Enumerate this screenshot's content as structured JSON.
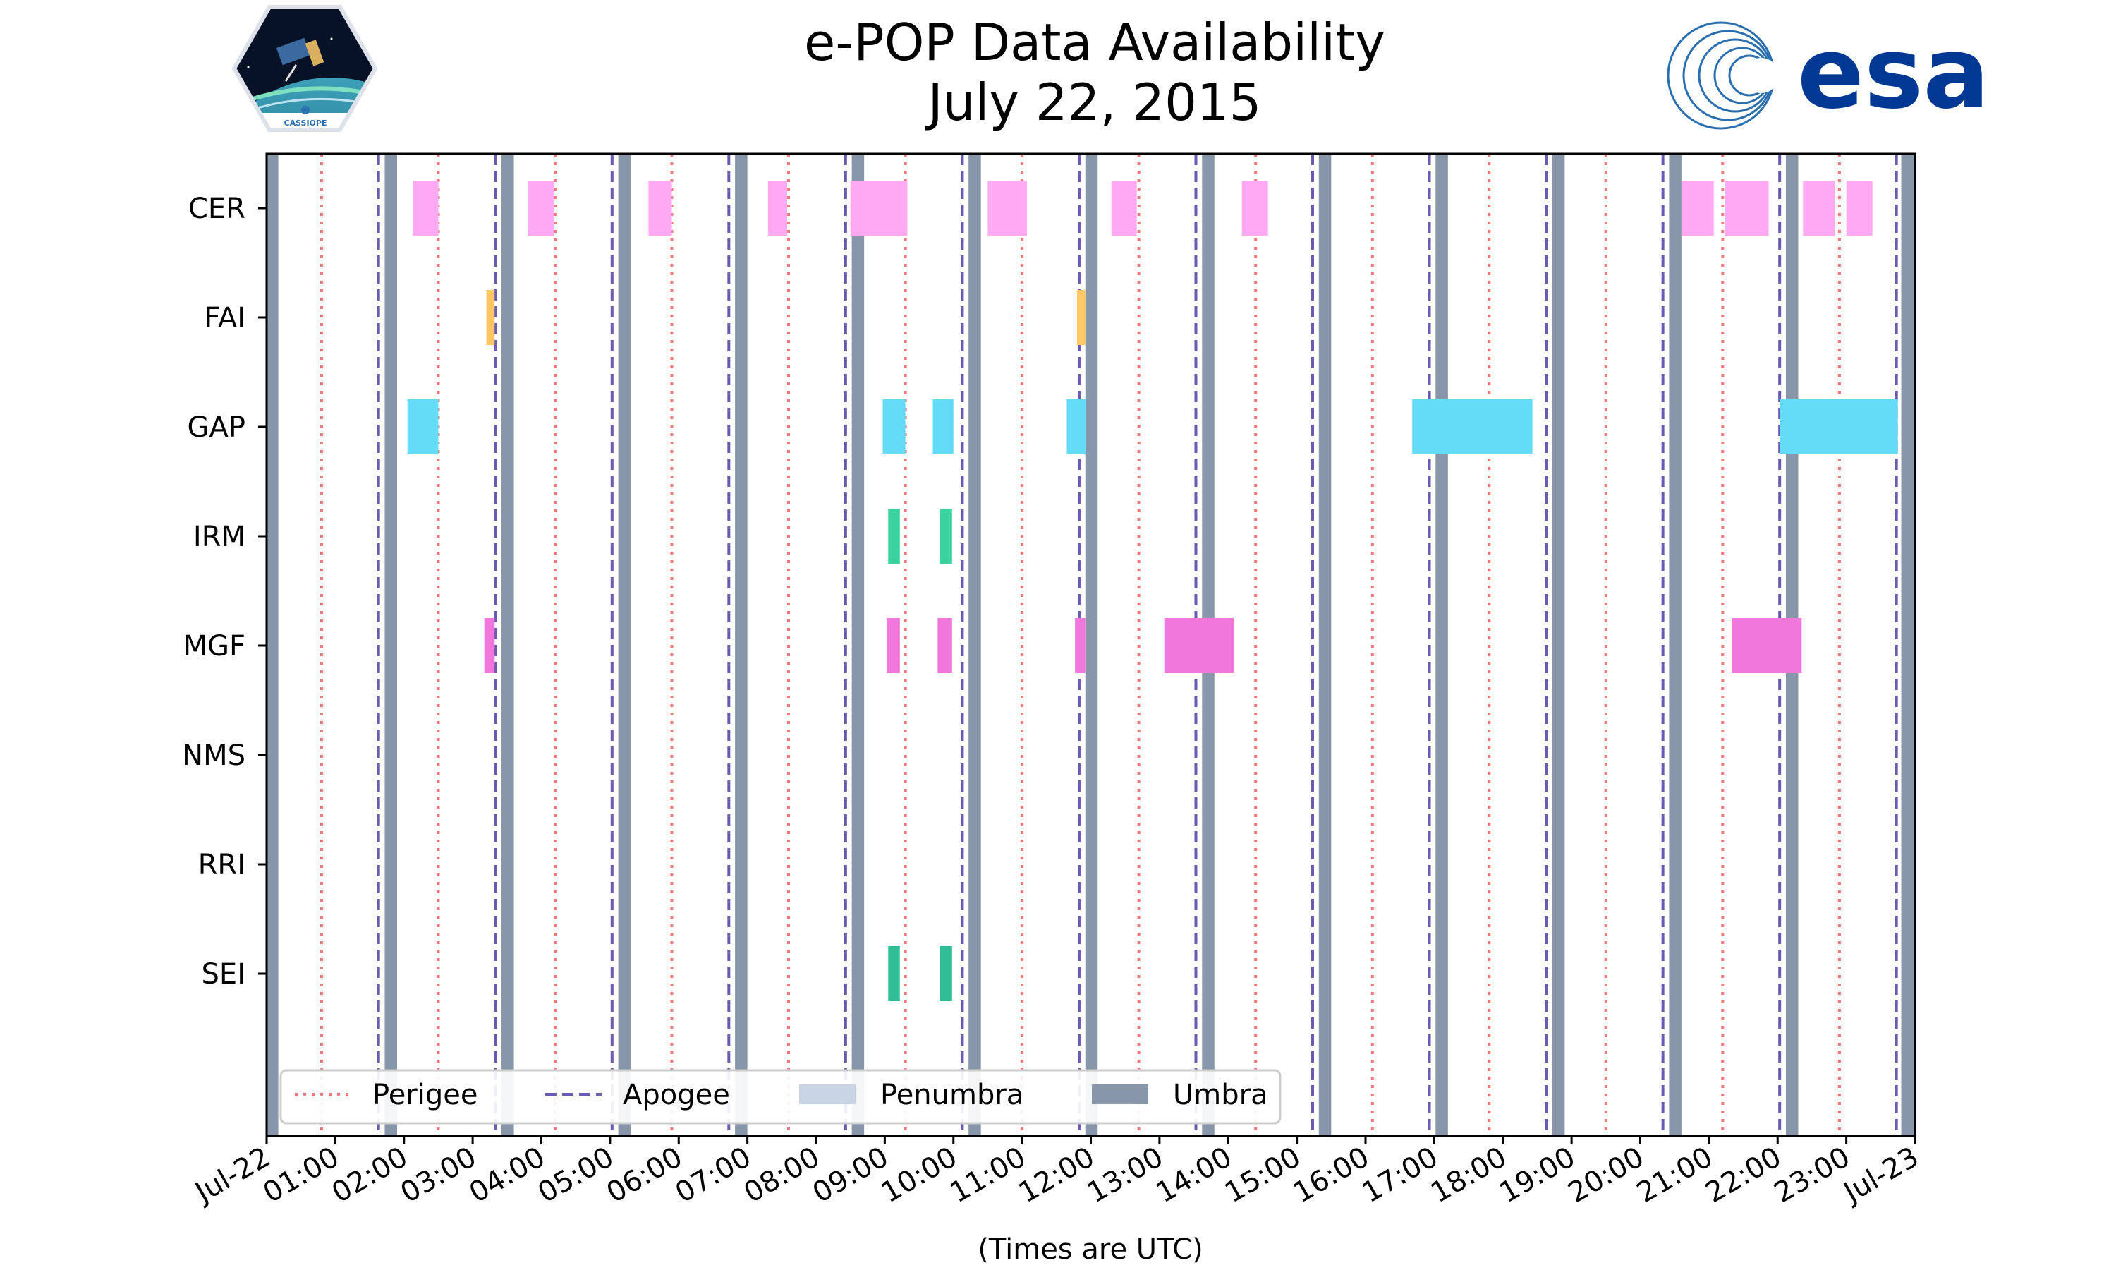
{
  "chart_data": {
    "type": "timeline",
    "title": "e-POP Data Availability",
    "subtitle": "July 22, 2015",
    "xlabel": "(Times are UTC)",
    "x_range_hours": [
      0,
      24
    ],
    "x_tick_labels": [
      "Jul-22",
      "01:00",
      "02:00",
      "03:00",
      "04:00",
      "05:00",
      "06:00",
      "07:00",
      "08:00",
      "09:00",
      "10:00",
      "11:00",
      "12:00",
      "13:00",
      "14:00",
      "15:00",
      "16:00",
      "17:00",
      "18:00",
      "19:00",
      "20:00",
      "21:00",
      "22:00",
      "23:00",
      "Jul-23"
    ],
    "instruments": [
      "CER",
      "FAI",
      "GAP",
      "IRM",
      "MGF",
      "NMS",
      "RRI",
      "SEI"
    ],
    "perigee_hours": [
      0.8,
      2.5,
      4.2,
      5.9,
      7.6,
      9.3,
      11.0,
      12.7,
      14.4,
      16.1,
      17.8,
      19.5,
      21.2,
      22.9
    ],
    "apogee_hours": [
      1.63,
      3.33,
      5.03,
      6.73,
      8.43,
      10.13,
      11.83,
      13.53,
      15.23,
      16.93,
      18.63,
      20.33,
      22.03,
      23.73
    ],
    "umbra_hours": [
      [
        0.0,
        0.17
      ],
      [
        1.72,
        1.9
      ],
      [
        3.42,
        3.6
      ],
      [
        5.12,
        5.3
      ],
      [
        6.82,
        7.0
      ],
      [
        8.52,
        8.7
      ],
      [
        10.22,
        10.4
      ],
      [
        11.92,
        12.1
      ],
      [
        13.62,
        13.8
      ],
      [
        15.32,
        15.5
      ],
      [
        17.02,
        17.2
      ],
      [
        18.72,
        18.9
      ],
      [
        20.42,
        20.6
      ],
      [
        22.12,
        22.3
      ],
      [
        23.8,
        24.0
      ]
    ],
    "series": [
      {
        "name": "CER",
        "color": "#ffaaf2",
        "intervals": [
          [
            2.13,
            2.5
          ],
          [
            3.8,
            4.18
          ],
          [
            5.56,
            5.9
          ],
          [
            7.3,
            7.58
          ],
          [
            8.5,
            9.33
          ],
          [
            10.5,
            11.07
          ],
          [
            12.3,
            12.67
          ],
          [
            14.2,
            14.58
          ],
          [
            20.6,
            21.07
          ],
          [
            21.23,
            21.87
          ],
          [
            22.37,
            22.83
          ],
          [
            23.0,
            23.38
          ]
        ]
      },
      {
        "name": "FAI",
        "color": "#ffc864",
        "intervals": [
          [
            3.2,
            3.32
          ],
          [
            11.8,
            11.92
          ]
        ]
      },
      {
        "name": "GAP",
        "color": "#64dcf8",
        "intervals": [
          [
            2.05,
            2.5
          ],
          [
            8.97,
            9.3
          ],
          [
            9.7,
            10.0
          ],
          [
            11.65,
            11.93
          ],
          [
            16.68,
            18.43
          ],
          [
            22.03,
            23.75
          ]
        ]
      },
      {
        "name": "IRM",
        "color": "#3cd2a0",
        "intervals": [
          [
            9.05,
            9.22
          ],
          [
            9.8,
            9.98
          ]
        ]
      },
      {
        "name": "MGF",
        "color": "#f078dc",
        "intervals": [
          [
            3.17,
            3.32
          ],
          [
            9.03,
            9.22
          ],
          [
            9.77,
            9.98
          ],
          [
            11.77,
            11.92
          ],
          [
            13.07,
            14.08
          ],
          [
            21.33,
            22.35
          ]
        ]
      },
      {
        "name": "NMS",
        "color": "#888888",
        "intervals": []
      },
      {
        "name": "RRI",
        "color": "#888888",
        "intervals": []
      },
      {
        "name": "SEI",
        "color": "#2fbe96",
        "intervals": [
          [
            9.05,
            9.22
          ],
          [
            9.8,
            9.98
          ]
        ]
      }
    ],
    "legend": {
      "position": "lower-left",
      "entries": [
        {
          "label": "Perigee",
          "style": "dotted",
          "color": "#f07878"
        },
        {
          "label": "Apogee",
          "style": "dashed",
          "color": "#6a5ab0"
        },
        {
          "label": "Penumbra",
          "style": "patch",
          "color": "#c8d4e4"
        },
        {
          "label": "Umbra",
          "style": "patch",
          "color": "#8796a8"
        }
      ]
    }
  },
  "logos": {
    "cassiope_text": "CASSIOPE",
    "esa_text": "esa"
  }
}
